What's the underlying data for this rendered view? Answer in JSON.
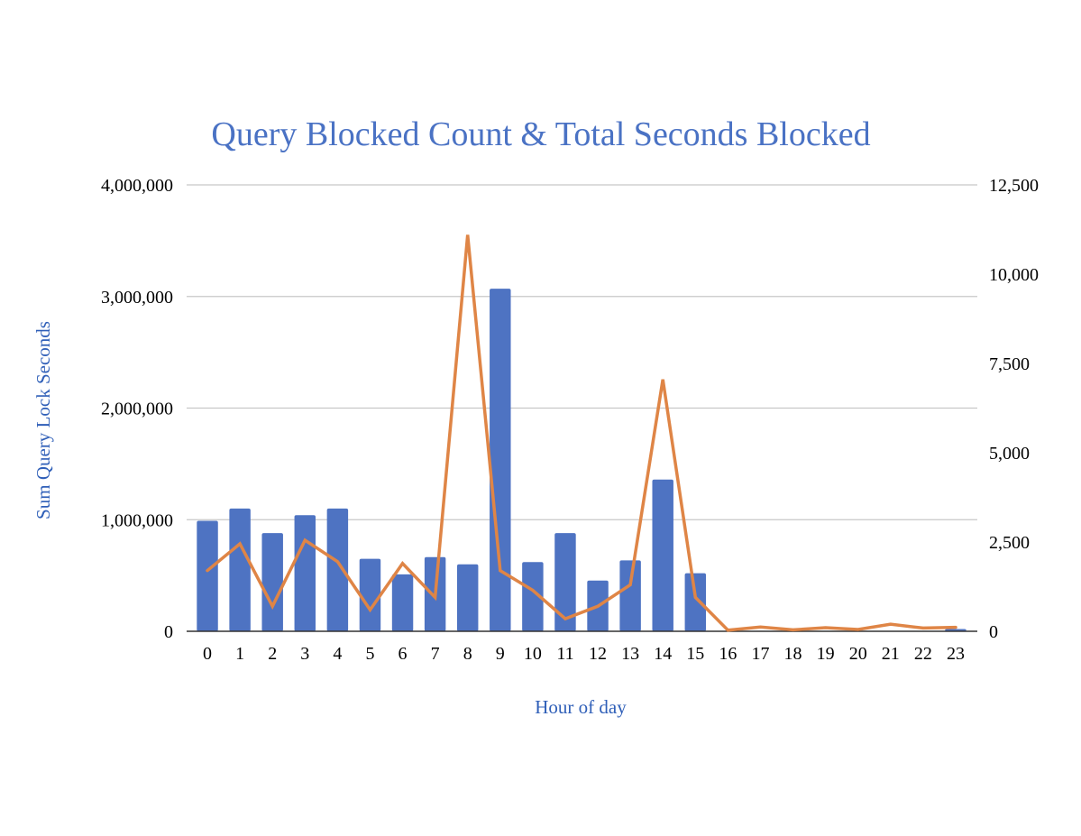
{
  "chart_data": {
    "type": "bar",
    "title": "Query Blocked Count & Total Seconds Blocked",
    "xlabel": "Hour of day",
    "ylabel": "Sum Query Lock Seconds",
    "y2label": "",
    "categories": [
      "0",
      "1",
      "2",
      "3",
      "4",
      "5",
      "6",
      "7",
      "8",
      "9",
      "10",
      "11",
      "12",
      "13",
      "14",
      "15",
      "16",
      "17",
      "18",
      "19",
      "20",
      "21",
      "22",
      "23"
    ],
    "ylim": [
      0,
      4000000
    ],
    "y2lim": [
      0,
      12500
    ],
    "yticks": [
      0,
      1000000,
      2000000,
      3000000,
      4000000
    ],
    "ytick_labels": [
      "0",
      "1,000,000",
      "2,000,000",
      "3,000,000",
      "4,000,000"
    ],
    "y2ticks": [
      0,
      2500,
      5000,
      7500,
      10000,
      12500
    ],
    "y2tick_labels": [
      "0",
      "2,500",
      "5,000",
      "7,500",
      "10,000",
      "12,500"
    ],
    "grid": true,
    "legend": "none",
    "series": [
      {
        "type": "bar",
        "axis": "left",
        "color": "#4e73c2",
        "values": [
          990000,
          1100000,
          880000,
          1040000,
          1100000,
          650000,
          510000,
          665000,
          600000,
          3070000,
          620000,
          880000,
          455000,
          635000,
          1360000,
          520000,
          0,
          0,
          0,
          0,
          0,
          0,
          0,
          20000
        ]
      },
      {
        "type": "line",
        "axis": "right",
        "color": "#df8546",
        "values": [
          1700,
          2450,
          700,
          2550,
          1950,
          600,
          1900,
          950,
          11100,
          1700,
          1150,
          350,
          700,
          1300,
          7050,
          950,
          30,
          120,
          40,
          100,
          50,
          200,
          90,
          110
        ]
      }
    ]
  }
}
